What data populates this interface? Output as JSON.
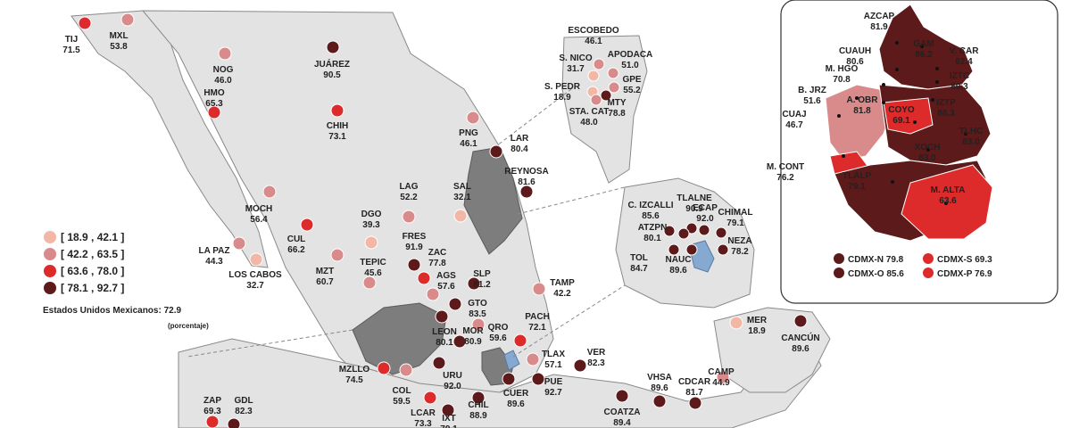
{
  "legend": {
    "items": [
      {
        "label": "[ 18.9 , 42.1 ]",
        "color": "#f2b8a5"
      },
      {
        "label": "[ 42.2 , 63.5 ]",
        "color": "#d98a8a"
      },
      {
        "label": "[ 63.6 , 78.0 ]",
        "color": "#dd2a2a"
      },
      {
        "label": "[ 78.1 , 92.7 ]",
        "color": "#5c1a1a"
      }
    ],
    "national": "Estados Unidos Mexicanos:  72.9",
    "unit": "(porcentaje)"
  },
  "cities": [
    {
      "name": "TIJ",
      "value": "71.5",
      "color": "#dd2a2a"
    },
    {
      "name": "MXL",
      "value": "53.8",
      "color": "#d98a8a"
    },
    {
      "name": "NOG",
      "value": "46.0",
      "color": "#d98a8a"
    },
    {
      "name": "JUÁREZ",
      "value": "90.5",
      "color": "#5c1a1a"
    },
    {
      "name": "HMO",
      "value": "65.3",
      "color": "#dd2a2a"
    },
    {
      "name": "CHIH",
      "value": "73.1",
      "color": "#dd2a2a"
    },
    {
      "name": "PNG",
      "value": "46.1",
      "color": "#d98a8a"
    },
    {
      "name": "LAR",
      "value": "80.4",
      "color": "#5c1a1a"
    },
    {
      "name": "REYNOSA",
      "value": "81.6",
      "color": "#5c1a1a"
    },
    {
      "name": "MOCH",
      "value": "56.4",
      "color": "#d98a8a"
    },
    {
      "name": "LAG",
      "value": "52.2",
      "color": "#d98a8a"
    },
    {
      "name": "SAL",
      "value": "32.1",
      "color": "#f2b8a5"
    },
    {
      "name": "DGO",
      "value": "39.3",
      "color": "#f2b8a5"
    },
    {
      "name": "CUL",
      "value": "66.2",
      "color": "#dd2a2a"
    },
    {
      "name": "LA PAZ",
      "value": "44.3",
      "color": "#d98a8a"
    },
    {
      "name": "LOS CABOS",
      "value": "32.7",
      "color": "#f2b8a5"
    },
    {
      "name": "MZT",
      "value": "60.7",
      "color": "#d98a8a"
    },
    {
      "name": "FRES",
      "value": "91.9",
      "color": "#5c1a1a"
    },
    {
      "name": "ZAC",
      "value": "77.8",
      "color": "#dd2a2a"
    },
    {
      "name": "TEPIC",
      "value": "45.6",
      "color": "#d98a8a"
    },
    {
      "name": "AGS",
      "value": "57.6",
      "color": "#d98a8a"
    },
    {
      "name": "SLP",
      "value": "81.2",
      "color": "#5c1a1a"
    },
    {
      "name": "TAMP",
      "value": "42.2",
      "color": "#d98a8a"
    },
    {
      "name": "GTO",
      "value": "83.5",
      "color": "#5c1a1a"
    },
    {
      "name": "QRO",
      "value": "59.6",
      "color": "#d98a8a"
    },
    {
      "name": "LEON",
      "value": "80.1",
      "color": "#5c1a1a"
    },
    {
      "name": "PACH",
      "value": "72.1",
      "color": "#dd2a2a"
    },
    {
      "name": "MOR",
      "value": "80.9",
      "color": "#5c1a1a"
    },
    {
      "name": "TLAX",
      "value": "57.1",
      "color": "#d98a8a"
    },
    {
      "name": "VER",
      "value": "82.3",
      "color": "#5c1a1a"
    },
    {
      "name": "MZLLO",
      "value": "74.5",
      "color": "#dd2a2a"
    },
    {
      "name": "COL",
      "value": "59.5",
      "color": "#d98a8a"
    },
    {
      "name": "URU",
      "value": "92.0",
      "color": "#5c1a1a"
    },
    {
      "name": "CUER",
      "value": "89.6",
      "color": "#5c1a1a"
    },
    {
      "name": "PUE",
      "value": "92.7",
      "color": "#5c1a1a"
    },
    {
      "name": "ZAP",
      "value": "69.3",
      "color": "#dd2a2a"
    },
    {
      "name": "GDL",
      "value": "82.3",
      "color": "#5c1a1a"
    },
    {
      "name": "LCAR",
      "value": "73.3",
      "color": "#dd2a2a"
    },
    {
      "name": "CHIL",
      "value": "88.9",
      "color": "#5c1a1a"
    },
    {
      "name": "IXT",
      "value": "79.1",
      "color": "#5c1a1a"
    },
    {
      "name": "COATZA",
      "value": "89.4",
      "color": "#5c1a1a"
    },
    {
      "name": "VHSA",
      "value": "89.6",
      "color": "#5c1a1a"
    },
    {
      "name": "CDCAR",
      "value": "81.7",
      "color": "#5c1a1a"
    },
    {
      "name": "CAMP",
      "value": "44.9",
      "color": "#d98a8a"
    },
    {
      "name": "MER",
      "value": "18.9",
      "color": "#f2b8a5"
    },
    {
      "name": "CANCÚN",
      "value": "89.6",
      "color": "#5c1a1a"
    }
  ],
  "monterrey_inset": [
    {
      "name": "ESCOBEDO",
      "value": "46.1",
      "color": "#d98a8a"
    },
    {
      "name": "S. NICO",
      "value": "31.7",
      "color": "#f2b8a5"
    },
    {
      "name": "APODACA",
      "value": "51.0",
      "color": "#d98a8a"
    },
    {
      "name": "S. PEDR",
      "value": "18.9",
      "color": "#f2b8a5"
    },
    {
      "name": "GPE",
      "value": "55.2",
      "color": "#d98a8a"
    },
    {
      "name": "STA. CAT",
      "value": "48.0",
      "color": "#d98a8a"
    },
    {
      "name": "MTY",
      "value": "78.8",
      "color": "#5c1a1a"
    }
  ],
  "edomex_inset": [
    {
      "name": "TLALNE",
      "value": "90.9",
      "color": "#5c1a1a"
    },
    {
      "name": "C. IZCALLI",
      "value": "85.6",
      "color": "#5c1a1a"
    },
    {
      "name": "ECAP",
      "value": "92.0",
      "color": "#5c1a1a"
    },
    {
      "name": "CHIMAL",
      "value": "79.1",
      "color": "#5c1a1a"
    },
    {
      "name": "ATZPN",
      "value": "80.1",
      "color": "#5c1a1a"
    },
    {
      "name": "NEZA",
      "value": "78.2",
      "color": "#5c1a1a"
    },
    {
      "name": "TOL",
      "value": "84.7",
      "color": "#5c1a1a"
    },
    {
      "name": "NAUC",
      "value": "89.6",
      "color": "#5c1a1a"
    }
  ],
  "cdmx_inset": {
    "boroughs": [
      {
        "name": "AZCAP",
        "value": "81.9",
        "color": "#5c1a1a"
      },
      {
        "name": "GAM",
        "value": "86.2",
        "color": "#5c1a1a"
      },
      {
        "name": "CUAUH",
        "value": "80.6",
        "color": "#5c1a1a"
      },
      {
        "name": "V. CAR",
        "value": "62.4",
        "color": "#d98a8a"
      },
      {
        "name": "M. HGO",
        "value": "70.8",
        "color": "#dd2a2a"
      },
      {
        "name": "IZTC",
        "value": "80.3",
        "color": "#5c1a1a"
      },
      {
        "name": "B. JRZ",
        "value": "51.6",
        "color": "#d98a8a"
      },
      {
        "name": "A. OBR",
        "value": "81.8",
        "color": "#5c1a1a"
      },
      {
        "name": "IZTP",
        "value": "88.3",
        "color": "#5c1a1a"
      },
      {
        "name": "COYO",
        "value": "69.1",
        "color": "#dd2a2a"
      },
      {
        "name": "CUAJ",
        "value": "46.7",
        "color": "#d98a8a"
      },
      {
        "name": "TLHC",
        "value": "83.0",
        "color": "#5c1a1a"
      },
      {
        "name": "XOCH",
        "value": "83.0",
        "color": "#5c1a1a"
      },
      {
        "name": "M. CONT",
        "value": "76.2",
        "color": "#dd2a2a"
      },
      {
        "name": "TLALP",
        "value": "79.1",
        "color": "#5c1a1a"
      },
      {
        "name": "M. ALTA",
        "value": "63.6",
        "color": "#dd2a2a"
      }
    ],
    "regions": [
      {
        "label": "CDMX-N 79.8",
        "color": "#5c1a1a"
      },
      {
        "label": "CDMX-S 69.3",
        "color": "#dd2a2a"
      },
      {
        "label": "CDMX-O 85.6",
        "color": "#5c1a1a"
      },
      {
        "label": "CDMX-P 76.9",
        "color": "#dd2a2a"
      }
    ]
  }
}
